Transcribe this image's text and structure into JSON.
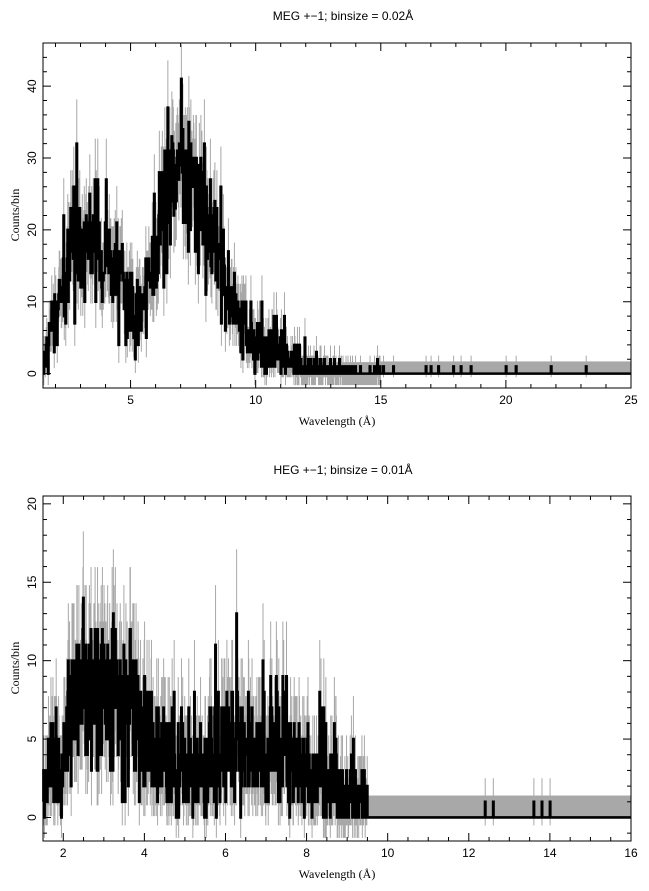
{
  "chart_data": [
    {
      "type": "line",
      "title": "MEG +−1; binsize = 0.02Å",
      "xlabel": "Wavelength (Å)",
      "ylabel": "Counts/bin",
      "xlim": [
        1.5,
        25
      ],
      "ylim": [
        -2,
        46
      ],
      "xticks_major": [
        5,
        10,
        15,
        20,
        25
      ],
      "xtick_labels": [
        "5",
        "10",
        "15",
        "20",
        "25"
      ],
      "yticks_major": [
        0,
        10,
        20,
        30,
        40
      ],
      "ytick_labels": [
        "0",
        "10",
        "20",
        "30",
        "40"
      ],
      "binsize": 0.02,
      "error_band": [
        0,
        1.7
      ],
      "band_start": 15,
      "profile": {
        "x": [
          1.5,
          2.0,
          2.5,
          3.0,
          3.5,
          4.0,
          4.5,
          5.0,
          5.5,
          6.0,
          6.5,
          7.0,
          7.5,
          8.0,
          8.5,
          9.0,
          9.5,
          10.0,
          10.5,
          11.0,
          11.5,
          12.0,
          13.0,
          14.0,
          15.0
        ],
        "y": [
          0.5,
          8,
          15,
          20,
          19,
          16,
          14,
          11,
          10,
          18,
          26,
          28,
          26,
          22,
          17,
          11,
          7,
          5,
          3.5,
          2.5,
          1.6,
          0.9,
          0.4,
          0.25,
          0.2
        ]
      },
      "sparse_spikes": [
        15.1,
        15.5,
        16.8,
        17.0,
        17.3,
        17.9,
        18.2,
        18.6,
        20.0,
        20.4,
        21.8,
        23.2
      ]
    },
    {
      "type": "line",
      "title": "HEG +−1; binsize = 0.01Å",
      "xlabel": "Wavelength (Å)",
      "ylabel": "Counts/bin",
      "xlim": [
        1.5,
        16
      ],
      "ylim": [
        -1.5,
        20.5
      ],
      "xticks_major": [
        2,
        4,
        6,
        8,
        10,
        12,
        14,
        16
      ],
      "xtick_labels": [
        "2",
        "4",
        "6",
        "8",
        "10",
        "12",
        "14",
        "16"
      ],
      "yticks_major": [
        0,
        5,
        10,
        15,
        20
      ],
      "ytick_labels": [
        "0",
        "5",
        "10",
        "15",
        "20"
      ],
      "binsize": 0.01,
      "error_band": [
        0,
        1.4
      ],
      "band_start": 9.5,
      "profile": {
        "x": [
          1.5,
          1.8,
          2.2,
          2.6,
          3.0,
          3.4,
          3.8,
          4.2,
          4.6,
          5.0,
          5.5,
          6.0,
          6.5,
          7.0,
          7.5,
          8.0,
          8.5,
          9.0,
          9.5,
          10.0,
          11.0,
          12.0,
          13.0,
          14.0,
          16.0
        ],
        "y": [
          1.2,
          4.0,
          6.5,
          7.5,
          8.0,
          7.5,
          6.0,
          4.5,
          3.5,
          3.0,
          3.0,
          4.2,
          4.8,
          4.6,
          3.8,
          3.2,
          2.4,
          1.6,
          1.1,
          0.8,
          0.5,
          0.35,
          0.2,
          0.12,
          0.05
        ]
      },
      "sparse_spikes": [
        12.4,
        12.6,
        13.6,
        13.8,
        14.0
      ]
    }
  ]
}
